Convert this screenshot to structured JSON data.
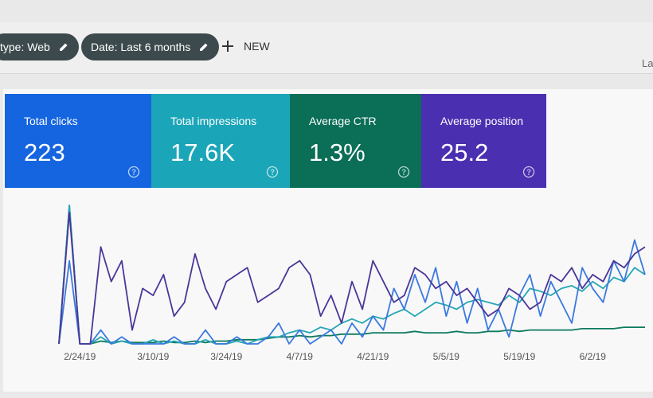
{
  "toolbar": {
    "chips": [
      "type: Web",
      "Date: Last 6 months"
    ],
    "new_button": "NEW",
    "corner_text": "La"
  },
  "cards": [
    {
      "label": "Total clicks",
      "value": "223",
      "color": "#1565e0"
    },
    {
      "label": "Total impressions",
      "value": "17.6K",
      "color": "#1ba5b8"
    },
    {
      "label": "Average CTR",
      "value": "1.3%",
      "color": "#0b6e57"
    },
    {
      "label": "Average position",
      "value": "25.2",
      "color": "#4a2fb0"
    }
  ],
  "chart_data": {
    "type": "line",
    "categories": [
      null,
      null,
      "2/24/19",
      null,
      null,
      null,
      null,
      null,
      null,
      "3/10/19",
      null,
      null,
      null,
      null,
      null,
      null,
      "3/24/19",
      null,
      null,
      null,
      null,
      null,
      null,
      "4/7/19",
      null,
      null,
      null,
      null,
      null,
      null,
      "4/21/19",
      null,
      null,
      null,
      null,
      null,
      null,
      "5/5/19",
      null,
      null,
      null,
      null,
      null,
      null,
      "5/19/19",
      null,
      null,
      null,
      null,
      null,
      null,
      "6/2/19",
      null,
      null,
      null,
      null,
      null
    ],
    "ylim": [
      0,
      100
    ],
    "series": [
      {
        "color": "#0e7a5e",
        "values": [
          0,
          100,
          0,
          0,
          2,
          1,
          2,
          1,
          1,
          1,
          2,
          1,
          1,
          2,
          1,
          2,
          2,
          3,
          3,
          3,
          4,
          5,
          5,
          6,
          5,
          6,
          6,
          7,
          7,
          7,
          8,
          8,
          8,
          8,
          9,
          8,
          8,
          8,
          9,
          8,
          8,
          9,
          9,
          10,
          9,
          10,
          10,
          10,
          10,
          10,
          11,
          11,
          11,
          11,
          12,
          12,
          12
        ]
      },
      {
        "color": "#26a6b5",
        "values": [
          0,
          100,
          0,
          0,
          5,
          0,
          2,
          0,
          0,
          3,
          0,
          2,
          0,
          0,
          3,
          0,
          0,
          2,
          0,
          3,
          5,
          5,
          8,
          10,
          8,
          12,
          10,
          15,
          18,
          15,
          20,
          18,
          22,
          25,
          20,
          25,
          30,
          28,
          25,
          30,
          32,
          30,
          28,
          35,
          30,
          40,
          38,
          35,
          40,
          42,
          38,
          45,
          40,
          48,
          45,
          55,
          50
        ]
      },
      {
        "color": "#3a79e0",
        "values": [
          0,
          60,
          0,
          0,
          10,
          0,
          5,
          0,
          0,
          0,
          0,
          5,
          0,
          0,
          10,
          0,
          0,
          5,
          0,
          0,
          5,
          15,
          0,
          10,
          0,
          5,
          10,
          0,
          15,
          5,
          20,
          10,
          40,
          25,
          50,
          30,
          55,
          20,
          45,
          15,
          40,
          10,
          25,
          5,
          35,
          50,
          20,
          45,
          30,
          15,
          55,
          40,
          30,
          60,
          45,
          75,
          50
        ]
      },
      {
        "color": "#4b3598",
        "values": [
          0,
          95,
          0,
          0,
          70,
          45,
          60,
          10,
          40,
          35,
          50,
          20,
          30,
          65,
          40,
          25,
          45,
          50,
          55,
          30,
          35,
          40,
          55,
          60,
          50,
          20,
          35,
          15,
          45,
          25,
          60,
          45,
          30,
          35,
          55,
          50,
          40,
          45,
          35,
          40,
          30,
          20,
          25,
          40,
          35,
          25,
          30,
          50,
          45,
          55,
          40,
          50,
          45,
          60,
          55,
          65,
          70
        ]
      }
    ]
  }
}
